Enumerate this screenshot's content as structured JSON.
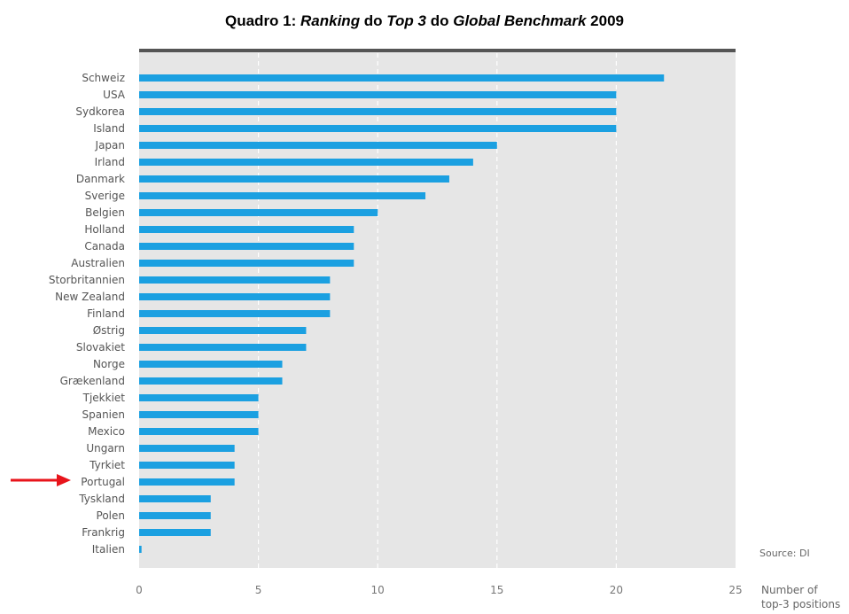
{
  "title_parts": {
    "p1": "Quadro 1: ",
    "p2": "Ranking",
    "p3": " do ",
    "p4": "Top 3",
    "p5": " do ",
    "p6": "Global Benchmark",
    "p7": " 2009"
  },
  "source_note": "Source: DI",
  "highlight_category": "Portugal",
  "colors": {
    "bar": "#1ba0e1",
    "plot_background": "#e6e6e6",
    "top_rule": "#555555",
    "arrow": "#e8141b"
  },
  "chart_data": {
    "type": "bar",
    "orientation": "horizontal",
    "title": "Quadro 1: Ranking do Top 3 do Global Benchmark 2009",
    "xlabel": [
      "Number of",
      "top-3 positions"
    ],
    "ylabel": "",
    "xlim": [
      0,
      25
    ],
    "xticks": [
      0,
      5,
      10,
      15,
      20,
      25
    ],
    "grid": "vertical dashed",
    "categories": [
      "Schweiz",
      "USA",
      "Sydkorea",
      "Island",
      "Japan",
      "Irland",
      "Danmark",
      "Sverige",
      "Belgien",
      "Holland",
      "Canada",
      "Australien",
      "Storbritannien",
      "New Zealand",
      "Finland",
      "Østrig",
      "Slovakiet",
      "Norge",
      "Grækenland",
      "Tjekkiet",
      "Spanien",
      "Mexico",
      "Ungarn",
      "Tyrkiet",
      "Portugal",
      "Tyskland",
      "Polen",
      "Frankrig",
      "Italien"
    ],
    "values": [
      22,
      20,
      20,
      20,
      15,
      14,
      13,
      12,
      10,
      9,
      9,
      9,
      8,
      8,
      8,
      7,
      7,
      6,
      6,
      5,
      5,
      5,
      4,
      4,
      4,
      3,
      3,
      3,
      0.1
    ]
  }
}
